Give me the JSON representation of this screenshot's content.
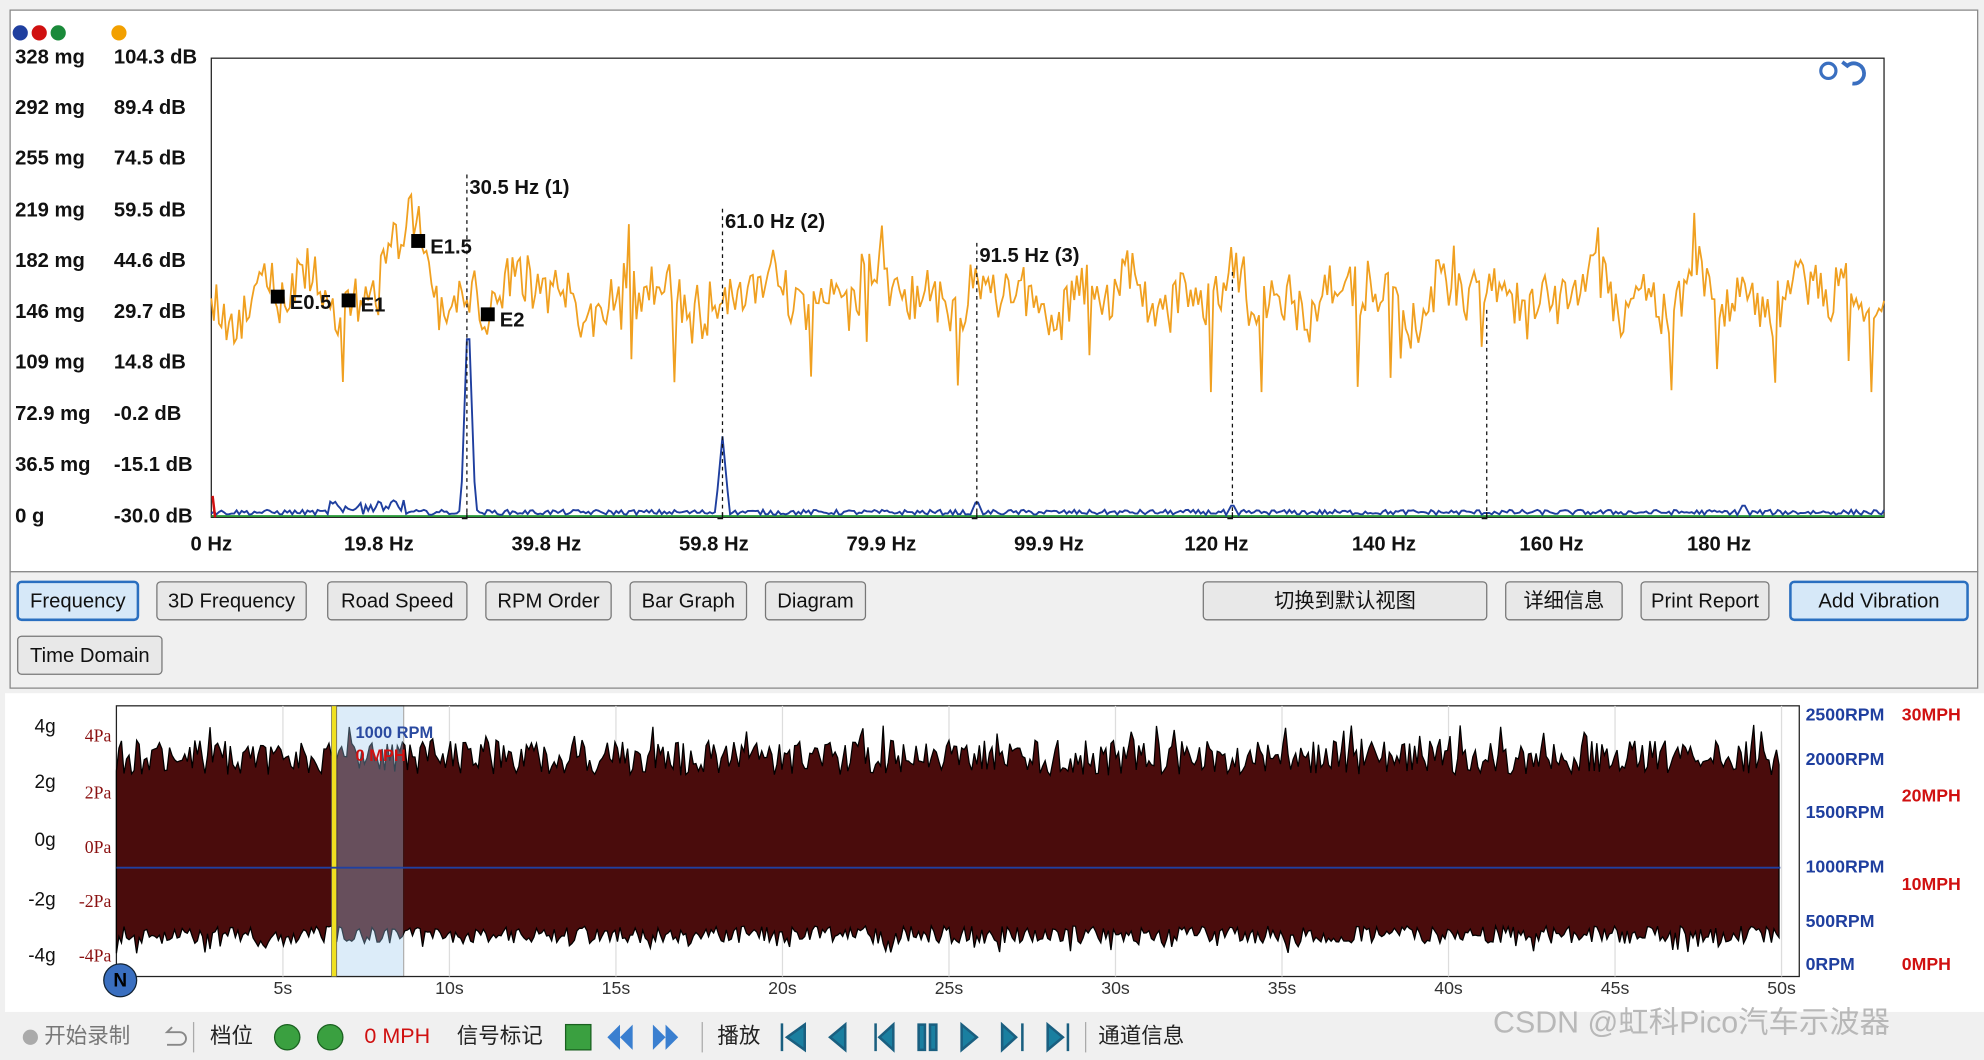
{
  "spectrum": {
    "y_labels_mg": [
      "328 mg",
      "292 mg",
      "255 mg",
      "219 mg",
      "182 mg",
      "146 mg",
      "109 mg",
      "72.9 mg",
      "36.5 mg",
      "0 g"
    ],
    "y_labels_db": [
      "104.3 dB",
      "89.4 dB",
      "74.5 dB",
      "59.5 dB",
      "44.6 dB",
      "29.7 dB",
      "14.8 dB",
      "-0.2 dB",
      "-15.1 dB",
      "-30.0 dB"
    ],
    "x_labels": [
      "0 Hz",
      "19.8 Hz",
      "39.8 Hz",
      "59.8 Hz",
      "79.9 Hz",
      "99.9 Hz",
      "120 Hz",
      "140 Hz",
      "160 Hz",
      "180 Hz"
    ],
    "peaks": [
      "30.5 Hz (1)",
      "61.0 Hz (2)",
      "91.5 Hz (3)"
    ],
    "markers": [
      "E0.5",
      "E1",
      "E1.5",
      "E2"
    ]
  },
  "view_buttons": [
    "Frequency",
    "3D Frequency",
    "Road Speed",
    "RPM Order",
    "Bar Graph",
    "Diagram"
  ],
  "second_row_buttons": [
    "Time Domain"
  ],
  "action_buttons": [
    "切换到默认视图",
    "详细信息",
    "Print Report",
    "Add Vibration"
  ],
  "time_plot": {
    "y_labels_g": [
      "4g",
      "2g",
      "0g",
      "-2g",
      "-4g"
    ],
    "y_labels_pa": [
      "4Pa",
      "2Pa",
      "0Pa",
      "-2Pa",
      "-4Pa"
    ],
    "x_labels": [
      "5s",
      "10s",
      "15s",
      "20s",
      "25s",
      "30s",
      "35s",
      "40s",
      "45s",
      "50s"
    ],
    "rpm_labels": [
      "2500RPM",
      "2000RPM",
      "1500RPM",
      "1000RPM",
      "500RPM",
      "0RPM"
    ],
    "mph_labels": [
      "30MPH",
      "20MPH",
      "10MPH",
      "0MPH"
    ],
    "overlay_rpm": "1000 RPM",
    "overlay_mph": "0 MPH",
    "badge": "N"
  },
  "toolbar": {
    "record": "开始录制",
    "gear": "档位",
    "speed": "0 MPH",
    "signal_mark": "信号标记",
    "playback": "播放",
    "channel_info": "通道信息"
  },
  "watermark": "CSDN @虹科Pico汽车示波器"
}
